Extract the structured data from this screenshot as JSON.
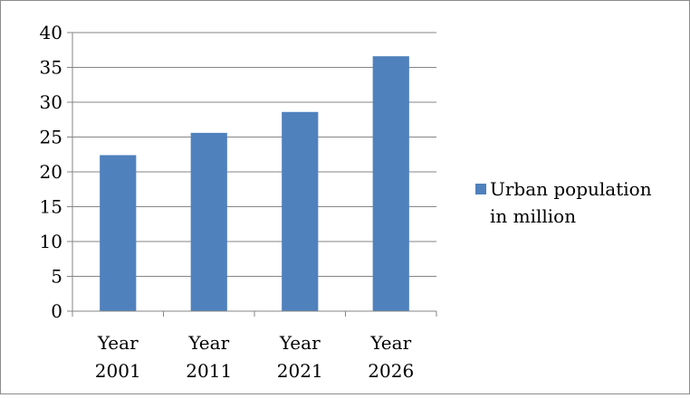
{
  "chart_data": {
    "type": "bar",
    "categories": [
      "Year 2001",
      "Year 2011",
      "Year 2021",
      "Year 2026"
    ],
    "category_lines": [
      [
        "Year",
        "2001"
      ],
      [
        "Year",
        "2011"
      ],
      [
        "Year",
        "2021"
      ],
      [
        "Year",
        "2026"
      ]
    ],
    "series": [
      {
        "name": "Urban population in million",
        "name_lines": [
          "Urban population",
          "in million"
        ],
        "values": [
          22.4,
          25.6,
          28.6,
          36.6
        ],
        "color": "#4f81bd"
      }
    ],
    "ylim": [
      0,
      40
    ],
    "yticks": [
      0,
      5,
      10,
      15,
      20,
      25,
      30,
      35,
      40
    ],
    "grid": true,
    "legend": "right",
    "title": "",
    "xlabel": "",
    "ylabel": ""
  }
}
